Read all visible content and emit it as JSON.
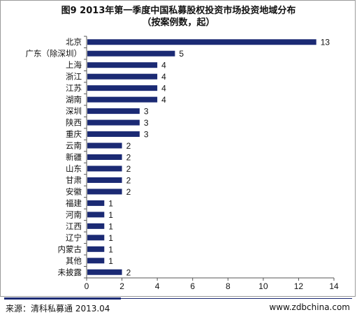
{
  "chart_data": {
    "type": "bar",
    "orientation": "horizontal",
    "title": "图9 2013年第一季度中国私募股权投资市场投资地域分布",
    "subtitle": "（按案例数，起）",
    "categories": [
      "北京",
      "广东（除深圳）",
      "上海",
      "浙江",
      "江苏",
      "湖南",
      "深圳",
      "陕西",
      "重庆",
      "云南",
      "新疆",
      "山东",
      "甘肃",
      "安徽",
      "福建",
      "河南",
      "江西",
      "辽宁",
      "内蒙古",
      "其他",
      "未披露"
    ],
    "values": [
      13,
      5,
      4,
      4,
      4,
      4,
      3,
      3,
      3,
      2,
      2,
      2,
      2,
      2,
      1,
      1,
      1,
      1,
      1,
      1,
      2
    ],
    "xlim": [
      0,
      14
    ],
    "xticks": [
      0,
      2,
      4,
      6,
      8,
      10,
      12,
      14
    ],
    "grid": false,
    "colors": {
      "bar": "#1b2a74",
      "axis": "#555555",
      "text": "#111111"
    }
  },
  "footer": {
    "source": "来源：清科私募通 2013.04",
    "website": "www.zdbchina.com"
  }
}
